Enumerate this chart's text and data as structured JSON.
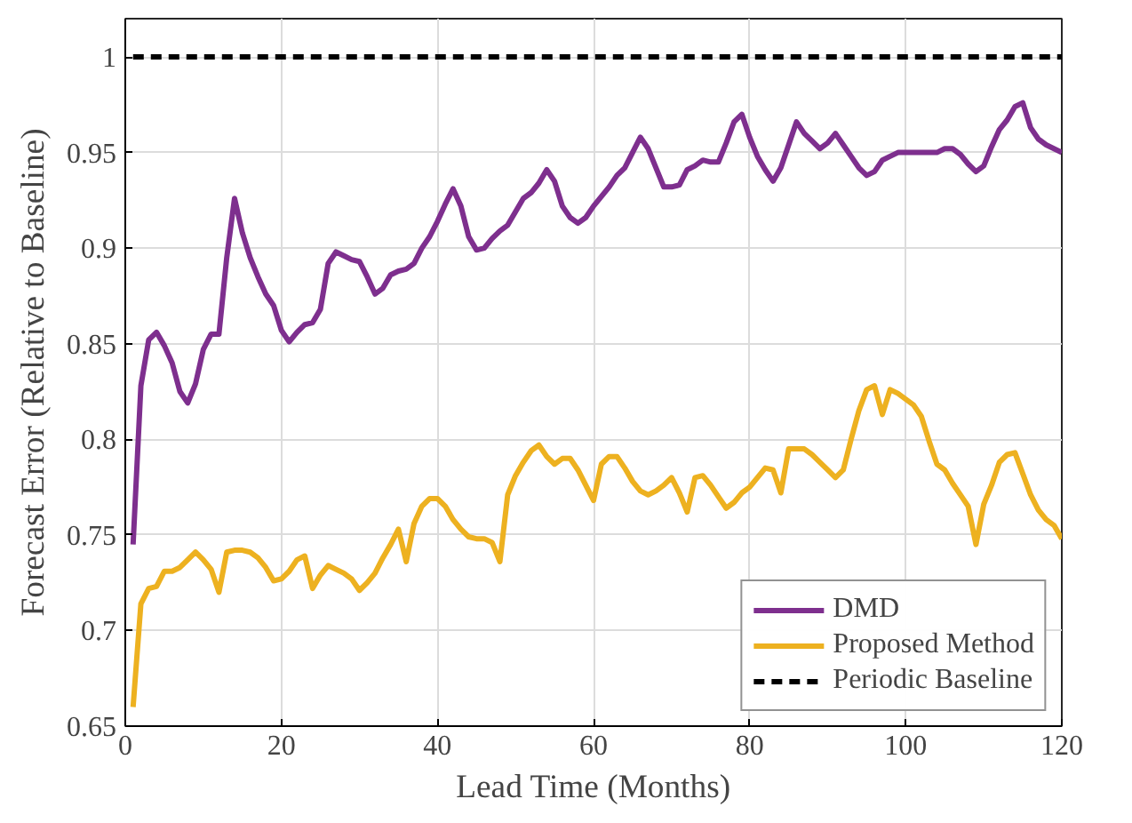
{
  "chart_data": {
    "type": "line",
    "xlabel": "Lead Time (Months)",
    "ylabel": "Forecast Error (Relative to Baseline)",
    "xlim": [
      0,
      120
    ],
    "ylim": [
      0.65,
      1.02
    ],
    "xticks": [
      0,
      20,
      40,
      60,
      80,
      100,
      120
    ],
    "yticks": [
      0.65,
      0.7,
      0.75,
      0.8,
      0.85,
      0.9,
      0.95,
      1
    ],
    "grid": true,
    "legend": "bottom right",
    "marker": "none",
    "series": [
      {
        "name": "DMD",
        "color": "#7e2f8e",
        "line_style": "solid",
        "x": [
          1,
          2,
          3,
          4,
          5,
          6,
          7,
          8,
          9,
          10,
          11,
          12,
          13,
          14,
          15,
          16,
          17,
          18,
          19,
          20,
          21,
          22,
          23,
          24,
          25,
          26,
          27,
          28,
          29,
          30,
          31,
          32,
          33,
          34,
          35,
          36,
          37,
          38,
          39,
          40,
          41,
          42,
          43,
          44,
          45,
          46,
          47,
          48,
          49,
          50,
          51,
          52,
          53,
          54,
          55,
          56,
          57,
          58,
          59,
          60,
          61,
          62,
          63,
          64,
          65,
          66,
          67,
          68,
          69,
          70,
          71,
          72,
          73,
          74,
          75,
          76,
          77,
          78,
          79,
          80,
          81,
          82,
          83,
          84,
          85,
          86,
          87,
          88,
          89,
          90,
          91,
          92,
          93,
          94,
          95,
          96,
          97,
          98,
          99,
          100,
          101,
          102,
          104,
          105,
          106,
          107,
          108,
          109,
          110,
          111,
          112,
          113,
          114,
          115,
          116,
          117,
          118,
          120
        ],
        "values": [
          0.745,
          0.828,
          0.852,
          0.856,
          0.849,
          0.84,
          0.825,
          0.819,
          0.829,
          0.847,
          0.855,
          0.855,
          0.895,
          0.926,
          0.908,
          0.895,
          0.885,
          0.876,
          0.87,
          0.857,
          0.851,
          0.856,
          0.86,
          0.861,
          0.868,
          0.892,
          0.898,
          0.896,
          0.894,
          0.893,
          0.885,
          0.876,
          0.879,
          0.886,
          0.888,
          0.889,
          0.892,
          0.9,
          0.906,
          0.914,
          0.923,
          0.931,
          0.922,
          0.906,
          0.899,
          0.9,
          0.905,
          0.909,
          0.912,
          0.919,
          0.926,
          0.929,
          0.934,
          0.941,
          0.935,
          0.922,
          0.916,
          0.913,
          0.916,
          0.922,
          0.927,
          0.932,
          0.938,
          0.942,
          0.95,
          0.958,
          0.952,
          0.942,
          0.932,
          0.932,
          0.933,
          0.941,
          0.943,
          0.946,
          0.945,
          0.945,
          0.955,
          0.966,
          0.97,
          0.958,
          0.948,
          0.941,
          0.935,
          0.942,
          0.954,
          0.966,
          0.96,
          0.956,
          0.952,
          0.955,
          0.96,
          0.954,
          0.948,
          0.942,
          0.938,
          0.94,
          0.946,
          0.948,
          0.95,
          0.95,
          0.95,
          0.95,
          0.95,
          0.952,
          0.952,
          0.949,
          0.944,
          0.94,
          0.943,
          0.953,
          0.962,
          0.967,
          0.974,
          0.976,
          0.963,
          0.957,
          0.954,
          0.95
        ]
      },
      {
        "name": "Proposed Method",
        "color": "#edb120",
        "line_style": "solid",
        "x": [
          1,
          2,
          3,
          4,
          5,
          6,
          7,
          8,
          9,
          10,
          11,
          12,
          13,
          14,
          15,
          16,
          17,
          18,
          19,
          20,
          21,
          22,
          23,
          24,
          25,
          26,
          27,
          28,
          29,
          30,
          31,
          32,
          33,
          34,
          35,
          36,
          37,
          38,
          39,
          40,
          41,
          42,
          43,
          44,
          45,
          46,
          47,
          48,
          49,
          50,
          51,
          52,
          53,
          54,
          55,
          56,
          57,
          58,
          59,
          60,
          61,
          62,
          63,
          64,
          65,
          66,
          67,
          68,
          69,
          70,
          71,
          72,
          73,
          74,
          75,
          76,
          77,
          78,
          79,
          80,
          81,
          82,
          83,
          84,
          85,
          86,
          87,
          88,
          89,
          90,
          91,
          92,
          93,
          94,
          95,
          96,
          97,
          98,
          99,
          100,
          101,
          102,
          103,
          104,
          105,
          106,
          107,
          108,
          109,
          110,
          111,
          112,
          113,
          114,
          115,
          116,
          117,
          118,
          119,
          120
        ],
        "values": [
          0.66,
          0.714,
          0.722,
          0.723,
          0.731,
          0.731,
          0.733,
          0.737,
          0.741,
          0.737,
          0.732,
          0.72,
          0.741,
          0.742,
          0.742,
          0.741,
          0.738,
          0.733,
          0.726,
          0.727,
          0.731,
          0.737,
          0.739,
          0.722,
          0.729,
          0.734,
          0.732,
          0.73,
          0.727,
          0.721,
          0.725,
          0.73,
          0.738,
          0.745,
          0.753,
          0.736,
          0.756,
          0.765,
          0.769,
          0.769,
          0.765,
          0.758,
          0.753,
          0.749,
          0.748,
          0.748,
          0.746,
          0.736,
          0.771,
          0.781,
          0.788,
          0.794,
          0.797,
          0.791,
          0.787,
          0.79,
          0.79,
          0.784,
          0.776,
          0.768,
          0.787,
          0.791,
          0.791,
          0.785,
          0.778,
          0.773,
          0.771,
          0.773,
          0.776,
          0.78,
          0.772,
          0.762,
          0.78,
          0.781,
          0.776,
          0.77,
          0.764,
          0.767,
          0.772,
          0.775,
          0.78,
          0.785,
          0.784,
          0.772,
          0.795,
          0.795,
          0.795,
          0.792,
          0.788,
          0.784,
          0.78,
          0.784,
          0.8,
          0.815,
          0.826,
          0.828,
          0.813,
          0.826,
          0.824,
          0.821,
          0.818,
          0.812,
          0.799,
          0.787,
          0.784,
          0.777,
          0.771,
          0.765,
          0.745,
          0.766,
          0.776,
          0.788,
          0.792,
          0.793,
          0.782,
          0.771,
          0.763,
          0.758,
          0.755,
          0.748
        ]
      },
      {
        "name": "Periodic Baseline",
        "color": "#000000",
        "line_style": "dashed",
        "x": [
          1,
          120
        ],
        "values": [
          1,
          1
        ]
      }
    ]
  }
}
